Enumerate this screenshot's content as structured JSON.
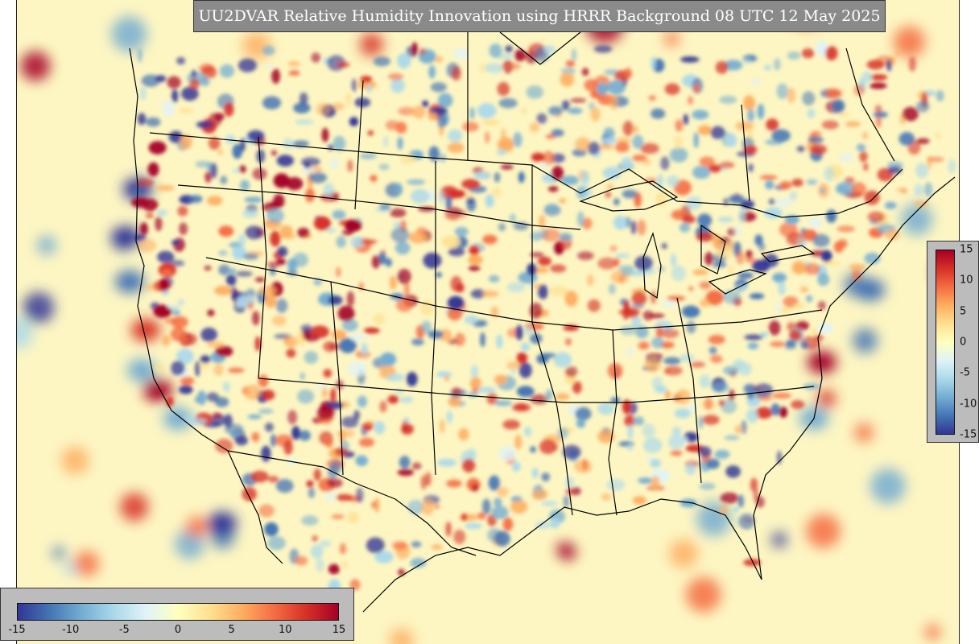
{
  "title": "UU2DVAR Relative Humidity Innovation using HRRR Background 08 UTC 12 May 2025",
  "colormap": {
    "name": "RdYlBu_r",
    "min": -15,
    "max": 15,
    "stops": [
      "#313695",
      "#4575b4",
      "#74add1",
      "#abd9e9",
      "#e0f3f8",
      "#ffffbf",
      "#fee090",
      "#fdae61",
      "#f46d43",
      "#d73027",
      "#a50026"
    ]
  },
  "colorbar_horizontal": {
    "ticks": [
      "-15",
      "-10",
      "-5",
      "0",
      "5",
      "10",
      "15"
    ]
  },
  "colorbar_vertical": {
    "ticks": [
      "15",
      "10",
      "5",
      "0",
      "-5",
      "-10",
      "-15"
    ]
  },
  "background_color": "#fdf6c3",
  "boundary_color": "#000000"
}
